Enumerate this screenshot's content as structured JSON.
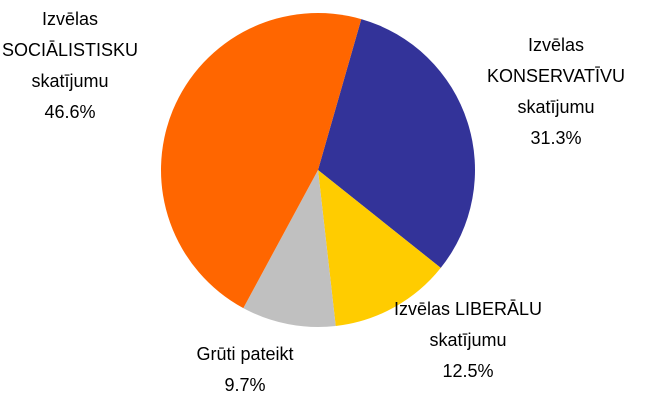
{
  "chart_data": {
    "type": "pie",
    "categories": [
      "Izvēlas\nKONSERVATĪVU\nskatījumu",
      "Izvēlas LIBERĀLU\nskatījumu",
      "Grūti pateikt",
      "Izvēlas\nSOCIĀLISTISKU\nskatījumu"
    ],
    "values": [
      31.3,
      12.5,
      9.7,
      46.6
    ],
    "value_labels": [
      "31.3%",
      "12.5%",
      "9.7%",
      "46.6%"
    ],
    "colors": [
      "#333399",
      "#FFCC00",
      "#C0C0C0",
      "#FF6600"
    ]
  }
}
